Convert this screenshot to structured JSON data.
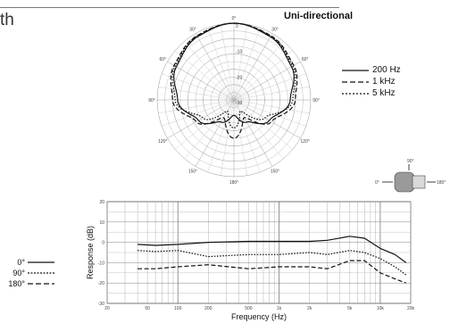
{
  "page": {
    "partial_word": "th"
  },
  "chart_data": [
    {
      "type": "polar",
      "title": "Uni-directional",
      "angle_labels": [
        "0°",
        "30°",
        "60°",
        "90°",
        "120°",
        "150°",
        "180°",
        "150°",
        "120°",
        "90°",
        "60°",
        "30°"
      ],
      "ring_labels": [
        "0",
        "-10",
        "-20",
        "-30"
      ],
      "series": [
        {
          "name": "200 Hz",
          "style": "solid",
          "angles": [
            0,
            30,
            60,
            90,
            120,
            150,
            180
          ],
          "values_db": [
            0,
            -1.5,
            -4,
            -8,
            -14,
            -20,
            -24
          ]
        },
        {
          "name": "1 kHz",
          "style": "dashed",
          "angles": [
            0,
            30,
            60,
            90,
            120,
            150,
            180
          ],
          "values_db": [
            0,
            -1,
            -3,
            -6,
            -13,
            -22,
            -15
          ]
        },
        {
          "name": "5 kHz",
          "style": "dotted",
          "angles": [
            0,
            30,
            60,
            90,
            120,
            150,
            180
          ],
          "values_db": [
            0,
            -1.2,
            -3.5,
            -7,
            -16,
            -25,
            -19
          ]
        }
      ]
    },
    {
      "type": "line",
      "xlabel": "Frequency (Hz)",
      "ylabel": "Response (dB)",
      "x_scale": "log",
      "x_ticks": [
        "20",
        "50",
        "100",
        "200",
        "500",
        "1k",
        "2k",
        "5k",
        "10k",
        "20k"
      ],
      "y_ticks": [
        "20",
        "10",
        "0",
        "-10",
        "-20",
        "-30"
      ],
      "ylim": [
        -30,
        20
      ],
      "xlim": [
        20,
        20000
      ],
      "series": [
        {
          "name": "0°",
          "style": "solid",
          "x": [
            40,
            60,
            100,
            200,
            500,
            1000,
            2000,
            3000,
            5000,
            7000,
            10000,
            14000,
            18000
          ],
          "y": [
            -1,
            -1.5,
            -1,
            0,
            0.5,
            0.5,
            0.5,
            1,
            3,
            2,
            -3,
            -6,
            -10
          ]
        },
        {
          "name": "90°",
          "style": "dotted",
          "x": [
            40,
            60,
            100,
            200,
            500,
            1000,
            2000,
            3000,
            5000,
            7000,
            10000,
            14000,
            18000
          ],
          "y": [
            -4,
            -4.5,
            -4,
            -7,
            -6,
            -6,
            -5,
            -6,
            -4,
            -5,
            -8,
            -12,
            -16
          ]
        },
        {
          "name": "180°",
          "style": "dashed",
          "x": [
            40,
            60,
            100,
            200,
            500,
            1000,
            2000,
            3000,
            5000,
            7000,
            10000,
            14000,
            18000
          ],
          "y": [
            -13,
            -13,
            -12,
            -11,
            -13,
            -12,
            -12,
            -13,
            -9,
            -9,
            -15,
            -18,
            -20
          ]
        }
      ]
    }
  ],
  "mic_diagram": {
    "front_label": "0°",
    "rear_label": "180°",
    "side_label": "90°"
  }
}
